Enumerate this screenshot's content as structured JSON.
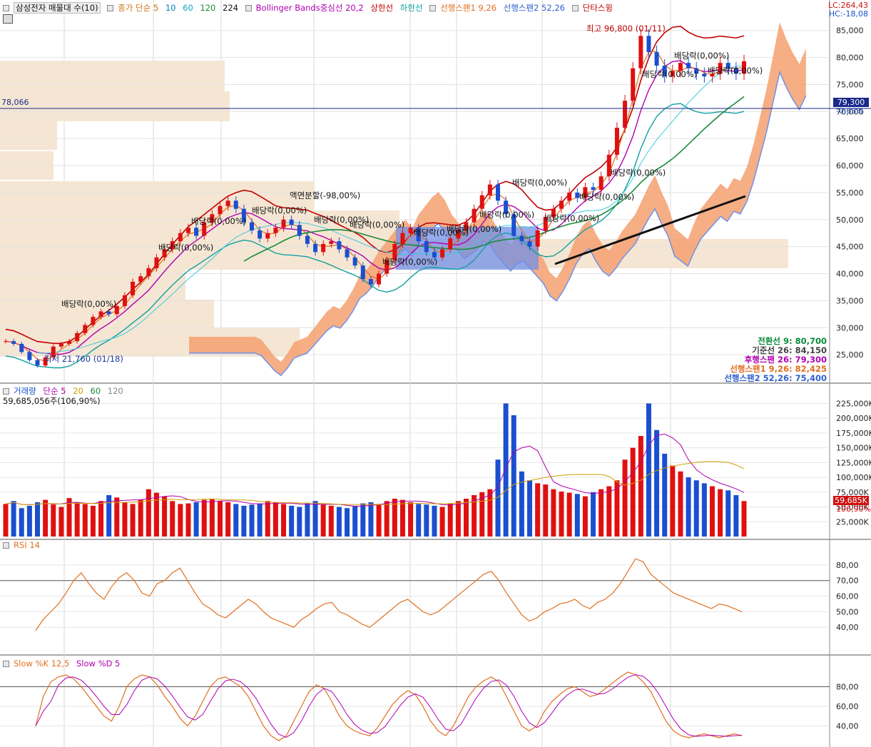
{
  "main_legend": {
    "title": "삼성전자 매물대 수(10)",
    "ma_label": "종가 단순 5",
    "ma_periods": [
      "10",
      "60",
      "120",
      "224"
    ],
    "bb_label": "Bollinger Bands중심선 20,2",
    "bb_upper": "상한선",
    "bb_lower": "하한선",
    "span1": "선행스팬1 9,26",
    "span2": "선행스팬2 52,26",
    "swing": "단타스윙"
  },
  "corner": {
    "lc": "LC:264,43",
    "hc": "HC:-18,08"
  },
  "price_line": {
    "left_label": "78,066",
    "current": "79,300",
    "change": "-0,63%"
  },
  "annotations": {
    "high": "최고 96,800 (01/11)",
    "low": "최저 21,760 (01/18)",
    "split": "액면분할(-98,00%)",
    "dividend": "배당락(0,00%)"
  },
  "ichimoku_values": [
    {
      "label": "전환선 9: 80,700",
      "color": "#0a8a3a"
    },
    {
      "label": "기준선 26: 84,150",
      "color": "#444444"
    },
    {
      "label": "후행스팬 26: 79,300",
      "color": "#b000b0"
    },
    {
      "label": "선행스팬1 9,26: 82,425",
      "color": "#e07020"
    },
    {
      "label": "선행스팬2 52,26: 75,400",
      "color": "#3060d0"
    }
  ],
  "volume_legend": {
    "title": "거래량",
    "ma": "단순 5",
    "periods": [
      "20",
      "60",
      "120"
    ],
    "value": "59,685,056주(106,90%)",
    "badge": "59,685K",
    "badge2": "106,90%"
  },
  "rsi_legend": {
    "title": "RSI 14"
  },
  "stoch_legend": {
    "title": "Slow %K 12,5",
    "d": "Slow %D 5"
  },
  "colors": {
    "up": "#e01010",
    "down": "#1a4fd0",
    "cloud": "#f4a070",
    "cloud_blue": "#7090e8",
    "vprofile": "#f5e6d3"
  },
  "chart_data": [
    {
      "type": "candlestick",
      "title": "삼성전자",
      "ylim": [
        20000,
        88000
      ],
      "y_ticks": [
        "25,000",
        "30,000",
        "35,000",
        "40,000",
        "45,000",
        "50,000",
        "55,000",
        "60,000",
        "65,000",
        "70,000",
        "75,000",
        "80,000",
        "85,000"
      ],
      "y_tick_values": [
        25000,
        30000,
        35000,
        40000,
        45000,
        50000,
        55000,
        60000,
        65000,
        70000,
        75000,
        80000,
        85000
      ],
      "close_series": [
        27500,
        27000,
        25500,
        24000,
        23000,
        24500,
        26500,
        27000,
        27500,
        29000,
        30500,
        32000,
        33000,
        32500,
        34000,
        36000,
        38500,
        39500,
        41000,
        43000,
        44500,
        46000,
        47500,
        48500,
        47000,
        49500,
        51000,
        52500,
        53500,
        52000,
        49500,
        48000,
        46500,
        47500,
        48500,
        50000,
        49000,
        47000,
        45500,
        44000,
        45500,
        46000,
        44500,
        43000,
        41500,
        39000,
        38000,
        40000,
        42500,
        45500,
        47500,
        48500,
        46000,
        44000,
        43000,
        44500,
        46500,
        48000,
        49500,
        52000,
        54500,
        56500,
        53500,
        51000,
        47000,
        46000,
        45000,
        48000,
        50500,
        52000,
        53500,
        55000,
        54000,
        56000,
        55500,
        58000,
        62000,
        67000,
        72000,
        78000,
        84000,
        81000,
        78500,
        76500,
        77500,
        79000,
        78000,
        77000,
        76500,
        77000,
        79000,
        78000,
        77000,
        79300
      ],
      "volume_values": [
        55,
        60,
        48,
        52,
        58,
        62,
        54,
        50,
        65,
        58,
        55,
        52,
        60,
        70,
        66,
        58,
        55,
        62,
        80,
        74,
        68,
        60,
        55,
        56,
        58,
        62,
        64,
        60,
        58,
        55,
        52,
        54,
        56,
        60,
        58,
        55,
        52,
        50,
        56,
        60,
        54,
        52,
        50,
        48,
        52,
        56,
        58,
        55,
        60,
        64,
        62,
        58,
        55,
        54,
        52,
        50,
        56,
        60,
        64,
        70,
        75,
        80,
        130,
        225,
        205,
        110,
        95,
        90,
        88,
        80,
        76,
        74,
        72,
        68,
        75,
        80,
        85,
        95,
        130,
        150,
        170,
        225,
        180,
        140,
        120,
        110,
        100,
        95,
        90,
        85,
        80,
        78,
        70,
        60
      ],
      "rsi_values": [
        38,
        45,
        50,
        55,
        62,
        70,
        75,
        68,
        62,
        58,
        66,
        72,
        75,
        70,
        62,
        60,
        68,
        70,
        75,
        78,
        70,
        62,
        55,
        52,
        48,
        46,
        50,
        54,
        58,
        55,
        50,
        46,
        44,
        42,
        40,
        45,
        48,
        52,
        55,
        56,
        50,
        48,
        45,
        42,
        40,
        44,
        48,
        52,
        56,
        58,
        54,
        50,
        48,
        50,
        54,
        58,
        62,
        66,
        70,
        74,
        76,
        70,
        62,
        55,
        48,
        44,
        46,
        50,
        52,
        55,
        56,
        58,
        54,
        52,
        56,
        58,
        62,
        68,
        76,
        84,
        82,
        74,
        70,
        66,
        62,
        60,
        58,
        56,
        54,
        52,
        55,
        54,
        52,
        50
      ],
      "stoch_k": [
        40,
        70,
        85,
        90,
        92,
        88,
        80,
        70,
        60,
        50,
        45,
        60,
        80,
        88,
        92,
        90,
        82,
        70,
        60,
        48,
        40,
        50,
        65,
        80,
        88,
        90,
        85,
        80,
        70,
        55,
        40,
        30,
        25,
        30,
        45,
        60,
        75,
        82,
        78,
        65,
        50,
        40,
        35,
        32,
        30,
        38,
        50,
        62,
        70,
        76,
        72,
        60,
        45,
        35,
        30,
        40,
        55,
        70,
        80,
        86,
        90,
        85,
        70,
        55,
        40,
        35,
        40,
        55,
        65,
        72,
        78,
        80,
        75,
        70,
        72,
        78,
        84,
        90,
        95,
        92,
        85,
        75,
        60,
        45,
        35,
        30,
        28,
        30,
        32,
        30,
        28,
        30,
        32,
        30
      ]
    }
  ]
}
